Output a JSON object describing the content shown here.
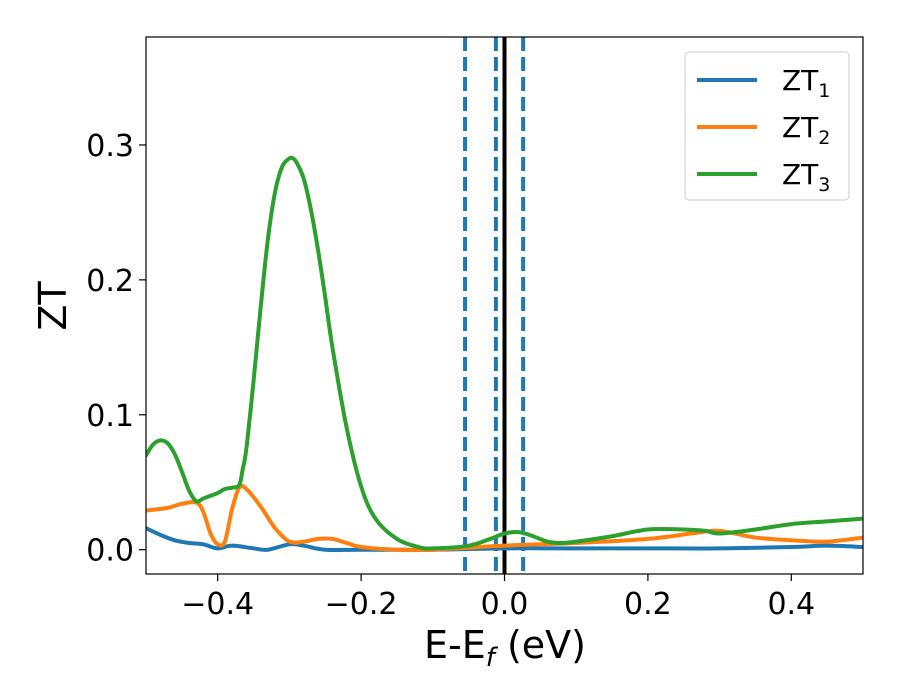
{
  "chart_data": {
    "type": "line",
    "xlabel": "E-E",
    "xlabel_sub": "f",
    "xlabel_unit": " (eV)",
    "ylabel": "ZT",
    "xlim": [
      -0.5,
      0.5
    ],
    "ylim": [
      -0.018,
      0.38
    ],
    "x_ticks": [
      -0.4,
      -0.2,
      0.0,
      0.2,
      0.4
    ],
    "x_tick_labels": [
      "−0.4",
      "−0.2",
      "0.0",
      "0.2",
      "0.4"
    ],
    "y_ticks": [
      0.0,
      0.1,
      0.2,
      0.3
    ],
    "y_tick_labels": [
      "0.0",
      "0.1",
      "0.2",
      "0.3"
    ],
    "grid": false,
    "legend_position": "top-right",
    "colors": {
      "ZT1": "#1f77b4",
      "ZT2": "#ff7f0e",
      "ZT3": "#2ca02c",
      "fermi": "#000000",
      "dashed": "#1f77b4"
    },
    "vertical_lines": [
      {
        "x": 0.0,
        "style": "solid",
        "color": "#000000"
      },
      {
        "x": -0.055,
        "style": "dashed",
        "color": "#1f77b4"
      },
      {
        "x": -0.012,
        "style": "dashed",
        "color": "#1f77b4"
      },
      {
        "x": 0.026,
        "style": "dashed",
        "color": "#1f77b4"
      }
    ],
    "series": [
      {
        "name": "ZT",
        "name_sub": "1",
        "color": "#1f77b4",
        "x": [
          -0.5,
          -0.48,
          -0.46,
          -0.44,
          -0.42,
          -0.4,
          -0.38,
          -0.35,
          -0.33,
          -0.3,
          -0.28,
          -0.25,
          -0.2,
          -0.1,
          0.0,
          0.1,
          0.2,
          0.3,
          0.4,
          0.45,
          0.5
        ],
        "y": [
          0.016,
          0.011,
          0.007,
          0.005,
          0.004,
          0.001,
          0.003,
          0.001,
          0.0,
          0.004,
          0.003,
          0.0,
          0.0,
          0.0,
          0.001,
          0.001,
          0.001,
          0.001,
          0.002,
          0.003,
          0.002
        ]
      },
      {
        "name": "ZT",
        "name_sub": "2",
        "color": "#ff7f0e",
        "x": [
          -0.5,
          -0.47,
          -0.45,
          -0.43,
          -0.42,
          -0.41,
          -0.4,
          -0.39,
          -0.38,
          -0.37,
          -0.36,
          -0.34,
          -0.32,
          -0.3,
          -0.28,
          -0.26,
          -0.24,
          -0.22,
          -0.2,
          -0.15,
          -0.1,
          0.0,
          0.1,
          0.2,
          0.26,
          0.3,
          0.35,
          0.4,
          0.45,
          0.5
        ],
        "y": [
          0.029,
          0.031,
          0.034,
          0.035,
          0.028,
          0.012,
          0.004,
          0.006,
          0.03,
          0.046,
          0.045,
          0.032,
          0.016,
          0.006,
          0.006,
          0.008,
          0.008,
          0.005,
          0.002,
          0.0,
          0.0,
          0.003,
          0.005,
          0.008,
          0.012,
          0.014,
          0.009,
          0.007,
          0.006,
          0.009
        ]
      },
      {
        "name": "ZT",
        "name_sub": "3",
        "color": "#2ca02c",
        "x": [
          -0.5,
          -0.49,
          -0.48,
          -0.47,
          -0.46,
          -0.45,
          -0.44,
          -0.43,
          -0.42,
          -0.41,
          -0.4,
          -0.39,
          -0.38,
          -0.37,
          -0.365,
          -0.36,
          -0.35,
          -0.34,
          -0.33,
          -0.32,
          -0.31,
          -0.3,
          -0.295,
          -0.29,
          -0.28,
          -0.27,
          -0.26,
          -0.25,
          -0.24,
          -0.22,
          -0.2,
          -0.18,
          -0.15,
          -0.12,
          -0.1,
          -0.05,
          -0.02,
          0.0,
          0.02,
          0.04,
          0.06,
          0.08,
          0.1,
          0.15,
          0.2,
          0.25,
          0.28,
          0.3,
          0.35,
          0.4,
          0.45,
          0.5
        ],
        "y": [
          0.07,
          0.078,
          0.081,
          0.079,
          0.071,
          0.058,
          0.044,
          0.036,
          0.038,
          0.04,
          0.042,
          0.045,
          0.046,
          0.048,
          0.06,
          0.075,
          0.125,
          0.18,
          0.23,
          0.265,
          0.284,
          0.29,
          0.29,
          0.287,
          0.275,
          0.252,
          0.222,
          0.187,
          0.15,
          0.09,
          0.047,
          0.023,
          0.008,
          0.002,
          0.001,
          0.003,
          0.008,
          0.012,
          0.013,
          0.01,
          0.006,
          0.005,
          0.006,
          0.01,
          0.015,
          0.015,
          0.014,
          0.012,
          0.015,
          0.019,
          0.021,
          0.023
        ]
      }
    ]
  }
}
